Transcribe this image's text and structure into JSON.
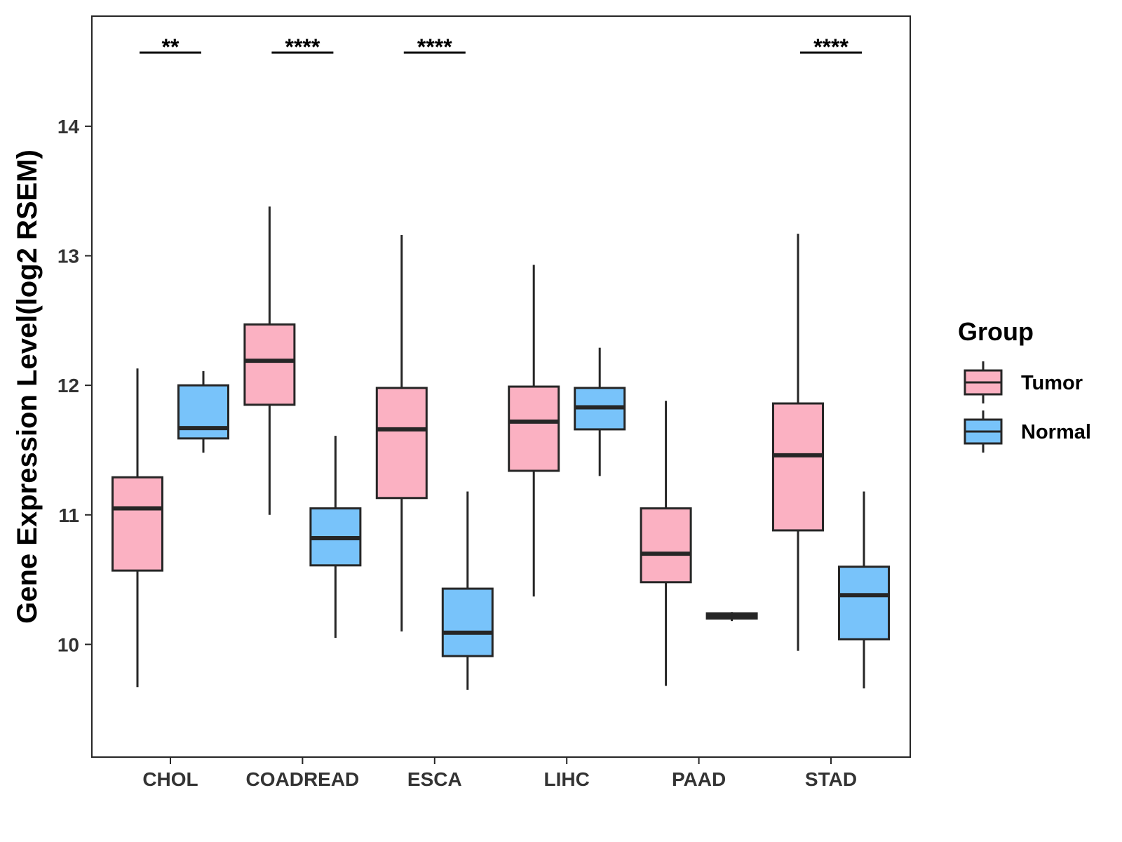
{
  "chart_data": {
    "type": "boxplot",
    "title": "",
    "xlabel": "",
    "ylabel": "Gene Expression Level(log2 RSEM)",
    "ylim": [
      9.13,
      14.85
    ],
    "yticks": [
      10,
      11,
      12,
      13,
      14
    ],
    "categories": [
      "CHOL",
      "COADREAD",
      "ESCA",
      "LIHC",
      "PAAD",
      "STAD"
    ],
    "legend": {
      "title": "Group",
      "position": "right",
      "entries": [
        "Tumor",
        "Normal"
      ]
    },
    "colors": {
      "Tumor": "#FBB1C2",
      "Normal": "#78C3FA",
      "stroke": "#262626"
    },
    "series": [
      {
        "name": "Tumor",
        "boxes": [
          {
            "category": "CHOL",
            "min": 9.67,
            "q1": 10.57,
            "median": 11.05,
            "q3": 11.29,
            "max": 12.13
          },
          {
            "category": "COADREAD",
            "min": 11.0,
            "q1": 11.85,
            "median": 12.19,
            "q3": 12.47,
            "max": 13.38
          },
          {
            "category": "ESCA",
            "min": 10.1,
            "q1": 11.13,
            "median": 11.66,
            "q3": 11.98,
            "max": 13.16
          },
          {
            "category": "LIHC",
            "min": 10.37,
            "q1": 11.34,
            "median": 11.72,
            "q3": 11.99,
            "max": 12.93
          },
          {
            "category": "PAAD",
            "min": 9.68,
            "q1": 10.48,
            "median": 10.7,
            "q3": 11.05,
            "max": 11.88
          },
          {
            "category": "STAD",
            "min": 9.95,
            "q1": 10.88,
            "median": 11.46,
            "q3": 11.86,
            "max": 13.17
          }
        ]
      },
      {
        "name": "Normal",
        "boxes": [
          {
            "category": "CHOL",
            "min": 11.48,
            "q1": 11.59,
            "median": 11.67,
            "q3": 12.0,
            "max": 12.11
          },
          {
            "category": "COADREAD",
            "min": 10.05,
            "q1": 10.61,
            "median": 10.82,
            "q3": 11.05,
            "max": 11.61
          },
          {
            "category": "ESCA",
            "min": 9.65,
            "q1": 9.91,
            "median": 10.09,
            "q3": 10.43,
            "max": 11.18
          },
          {
            "category": "LIHC",
            "min": 11.3,
            "q1": 11.66,
            "median": 11.83,
            "q3": 11.98,
            "max": 12.29
          },
          {
            "category": "PAAD",
            "min": 10.18,
            "q1": 10.2,
            "median": 10.22,
            "q3": 10.24,
            "max": 10.25
          },
          {
            "category": "STAD",
            "min": 9.66,
            "q1": 10.04,
            "median": 10.38,
            "q3": 10.6,
            "max": 11.18
          }
        ]
      }
    ],
    "significance": [
      {
        "category": "CHOL",
        "label": "**"
      },
      {
        "category": "COADREAD",
        "label": "****"
      },
      {
        "category": "ESCA",
        "label": "****"
      },
      {
        "category": "STAD",
        "label": "****"
      }
    ]
  }
}
